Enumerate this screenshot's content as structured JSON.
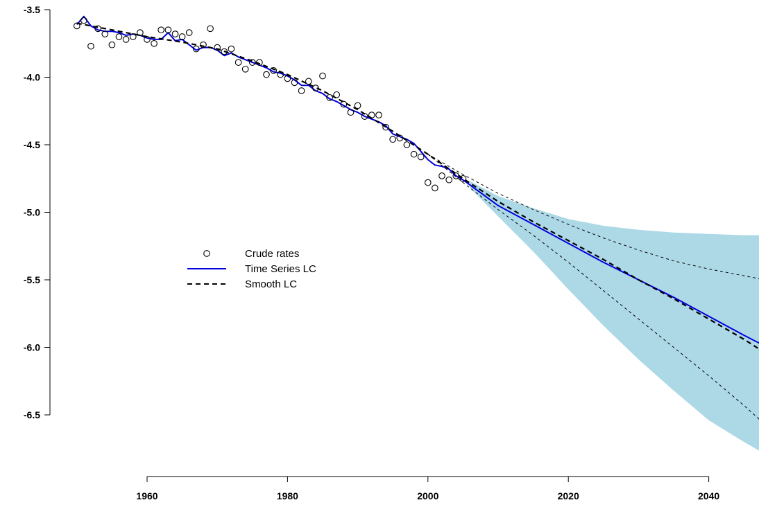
{
  "chart_data": {
    "type": "line",
    "title": "",
    "xlabel": "",
    "ylabel": "",
    "xlim": [
      1950,
      2048
    ],
    "ylim": [
      -6.5,
      -3.5
    ],
    "x_ticks": [
      1960,
      1980,
      2000,
      2020,
      2040
    ],
    "x_tick_labels": [
      "1960",
      "1980",
      "2000",
      "2020",
      "2040"
    ],
    "y_ticks": [
      -3.5,
      -4.0,
      -4.5,
      -5.0,
      -5.5,
      -6.0,
      -6.5
    ],
    "y_tick_labels": [
      "-3.5",
      "-4.0",
      "-4.5",
      "-5.0",
      "-5.5",
      "-6.0",
      "-6.5"
    ],
    "grid": false,
    "legend": {
      "position": "center-left",
      "entries": [
        {
          "label": "Crude rates",
          "style": "open-circle",
          "color": "#000000"
        },
        {
          "label": "Time Series LC",
          "style": "solid-line",
          "color": "#0000dd"
        },
        {
          "label": "Smooth LC",
          "style": "dashed-line",
          "color": "#000000"
        }
      ]
    },
    "colors": {
      "time_series": "#0000dd",
      "smooth": "#000000",
      "points": "#000000",
      "interval_fill": "#add8e6"
    },
    "series": [
      {
        "name": "Crude rates",
        "kind": "scatter",
        "x": [
          1950,
          1951,
          1952,
          1953,
          1954,
          1955,
          1956,
          1957,
          1958,
          1959,
          1960,
          1961,
          1962,
          1963,
          1964,
          1965,
          1966,
          1967,
          1968,
          1969,
          1970,
          1971,
          1972,
          1973,
          1974,
          1975,
          1976,
          1977,
          1978,
          1979,
          1980,
          1981,
          1982,
          1983,
          1984,
          1985,
          1986,
          1987,
          1988,
          1989,
          1990,
          1991,
          1992,
          1993,
          1994,
          1995,
          1996,
          1997,
          1998,
          1999,
          2000,
          2001,
          2002,
          2003,
          2004,
          2005
        ],
        "y": [
          -3.62,
          -3.58,
          -3.77,
          -3.64,
          -3.68,
          -3.76,
          -3.7,
          -3.72,
          -3.7,
          -3.67,
          -3.72,
          -3.75,
          -3.65,
          -3.65,
          -3.68,
          -3.7,
          -3.67,
          -3.79,
          -3.76,
          -3.64,
          -3.78,
          -3.81,
          -3.79,
          -3.89,
          -3.94,
          -3.89,
          -3.89,
          -3.98,
          -3.95,
          -3.98,
          -4.01,
          -4.04,
          -4.1,
          -4.03,
          -4.08,
          -3.99,
          -4.15,
          -4.13,
          -4.2,
          -4.26,
          -4.21,
          -4.29,
          -4.28,
          -4.28,
          -4.37,
          -4.46,
          -4.45,
          -4.5,
          -4.57,
          -4.59,
          -4.78,
          -4.82,
          -4.73,
          -4.76,
          -4.73,
          -4.75
        ]
      },
      {
        "name": "Time Series LC",
        "kind": "line",
        "x": [
          1950,
          1951,
          1952,
          1953,
          1954,
          1955,
          1956,
          1957,
          1958,
          1959,
          1960,
          1961,
          1962,
          1963,
          1964,
          1965,
          1966,
          1967,
          1968,
          1969,
          1970,
          1971,
          1972,
          1973,
          1974,
          1975,
          1976,
          1977,
          1978,
          1979,
          1980,
          1981,
          1982,
          1983,
          1984,
          1985,
          1986,
          1987,
          1988,
          1989,
          1990,
          1991,
          1992,
          1993,
          1994,
          1995,
          1996,
          1997,
          1998,
          1999,
          2000,
          2001,
          2002,
          2003,
          2004,
          2005,
          2010,
          2015,
          2020,
          2025,
          2030,
          2035,
          2040,
          2045,
          2048
        ],
        "y": [
          -3.61,
          -3.55,
          -3.62,
          -3.65,
          -3.66,
          -3.66,
          -3.67,
          -3.69,
          -3.68,
          -3.69,
          -3.71,
          -3.72,
          -3.72,
          -3.67,
          -3.73,
          -3.72,
          -3.76,
          -3.8,
          -3.78,
          -3.78,
          -3.8,
          -3.84,
          -3.82,
          -3.85,
          -3.87,
          -3.89,
          -3.91,
          -3.93,
          -3.96,
          -3.97,
          -3.99,
          -4.02,
          -4.06,
          -4.06,
          -4.1,
          -4.12,
          -4.16,
          -4.18,
          -4.21,
          -4.24,
          -4.26,
          -4.29,
          -4.31,
          -4.33,
          -4.36,
          -4.42,
          -4.44,
          -4.46,
          -4.49,
          -4.55,
          -4.61,
          -4.65,
          -4.66,
          -4.68,
          -4.73,
          -4.76,
          -4.95,
          -5.09,
          -5.23,
          -5.37,
          -5.5,
          -5.63,
          -5.77,
          -5.91,
          -5.99
        ]
      },
      {
        "name": "Smooth LC",
        "kind": "dashed-line",
        "x": [
          1950,
          1955,
          1960,
          1965,
          1970,
          1975,
          1980,
          1985,
          1990,
          1995,
          2000,
          2005,
          2010,
          2015,
          2020,
          2025,
          2030,
          2035,
          2040,
          2045,
          2048
        ],
        "y": [
          -3.6,
          -3.65,
          -3.7,
          -3.74,
          -3.79,
          -3.88,
          -3.98,
          -4.1,
          -4.24,
          -4.4,
          -4.57,
          -4.75,
          -4.92,
          -5.07,
          -5.21,
          -5.35,
          -5.5,
          -5.64,
          -5.79,
          -5.94,
          -6.04
        ]
      },
      {
        "name": "",
        "kind": "dashed-line-thin",
        "x": [
          2000,
          2005,
          2010,
          2015,
          2020,
          2025,
          2030,
          2035,
          2040,
          2045,
          2048
        ],
        "y": [
          -4.57,
          -4.72,
          -4.86,
          -4.98,
          -5.09,
          -5.19,
          -5.28,
          -5.36,
          -5.42,
          -5.47,
          -5.5
        ]
      },
      {
        "name": "",
        "kind": "dashed-line-thin",
        "x": [
          2000,
          2005,
          2010,
          2015,
          2020,
          2025,
          2030,
          2035,
          2040,
          2045,
          2048
        ],
        "y": [
          -4.57,
          -4.78,
          -4.98,
          -5.17,
          -5.37,
          -5.58,
          -5.79,
          -6.0,
          -6.21,
          -6.43,
          -6.57
        ]
      },
      {
        "name": "",
        "kind": "interval-band",
        "x": [
          2006,
          2010,
          2015,
          2020,
          2025,
          2030,
          2035,
          2040,
          2045,
          2048
        ],
        "upper": [
          -4.77,
          -4.88,
          -4.97,
          -5.05,
          -5.1,
          -5.13,
          -5.15,
          -5.16,
          -5.17,
          -5.17
        ],
        "lower": [
          -4.82,
          -5.03,
          -5.29,
          -5.57,
          -5.84,
          -6.09,
          -6.32,
          -6.54,
          -6.7,
          -6.79
        ]
      }
    ]
  }
}
